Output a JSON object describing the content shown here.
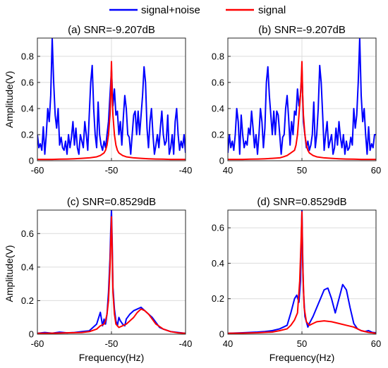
{
  "legend": {
    "entries": [
      {
        "label": "signal+noise",
        "color": "#0000ff"
      },
      {
        "label": "signal",
        "color": "#ff0000"
      }
    ],
    "placement": "top"
  },
  "chart_data": [
    {
      "type": "line",
      "title": "(a) SNR=-9.207dB",
      "xlabel": "",
      "ylabel": "Amplitude(V)",
      "xlim": [
        -60,
        -40
      ],
      "ylim": [
        0,
        0.94
      ],
      "xticks": [
        -60,
        -50,
        -40
      ],
      "xtick_labels": [
        "-60",
        "-50",
        "-40"
      ],
      "yticks": [
        0,
        0.2,
        0.4,
        0.6,
        0.8
      ],
      "ytick_labels": [
        "0",
        "0.2",
        "0.4",
        "0.6",
        "0.8"
      ],
      "grid": true,
      "series": [
        {
          "name": "signal+noise",
          "color": "#0000ff",
          "x": [
            -60,
            -59.8,
            -59.6,
            -59.4,
            -59.2,
            -59,
            -58.8,
            -58.6,
            -58.4,
            -58.2,
            -58,
            -57.8,
            -57.6,
            -57.4,
            -57.2,
            -57,
            -56.8,
            -56.6,
            -56.4,
            -56.2,
            -56,
            -55.8,
            -55.6,
            -55.4,
            -55.2,
            -55,
            -54.8,
            -54.6,
            -54.4,
            -54.2,
            -54,
            -53.8,
            -53.6,
            -53.4,
            -53.2,
            -53,
            -52.8,
            -52.6,
            -52.4,
            -52.2,
            -52,
            -51.8,
            -51.6,
            -51.4,
            -51.2,
            -51,
            -50.8,
            -50.6,
            -50.4,
            -50.2,
            -50,
            -49.8,
            -49.6,
            -49.4,
            -49.2,
            -49,
            -48.8,
            -48.6,
            -48.4,
            -48.2,
            -48,
            -47.8,
            -47.6,
            -47.4,
            -47.2,
            -47,
            -46.8,
            -46.6,
            -46.4,
            -46.2,
            -46,
            -45.8,
            -45.6,
            -45.4,
            -45.2,
            -45,
            -44.8,
            -44.6,
            -44.4,
            -44.2,
            -44,
            -43.8,
            -43.6,
            -43.4,
            -43.2,
            -43,
            -42.8,
            -42.6,
            -42.4,
            -42.2,
            -42,
            -41.8,
            -41.6,
            -41.4,
            -41.2,
            -41,
            -40.8,
            -40.6,
            -40.4,
            -40.2,
            -40
          ],
          "y": [
            0.2,
            0.1,
            0.13,
            0.08,
            0.26,
            0.05,
            0.2,
            0.4,
            0.3,
            0.5,
            0.94,
            0.6,
            0.35,
            0.25,
            0.4,
            0.12,
            0.18,
            0.1,
            0.08,
            0.15,
            0.05,
            0.2,
            0.1,
            0.18,
            0.3,
            0.12,
            0.25,
            0.1,
            0.05,
            0.2,
            0.15,
            0.1,
            0.3,
            0.2,
            0.08,
            0.35,
            0.6,
            0.73,
            0.4,
            0.2,
            0.1,
            0.45,
            0.2,
            0.12,
            0.08,
            0.15,
            0.1,
            0.2,
            0.3,
            0.5,
            0.7,
            0.42,
            0.55,
            0.35,
            0.38,
            0.2,
            0.3,
            0.12,
            0.33,
            0.5,
            0.4,
            0.2,
            0.18,
            0.05,
            0.2,
            0.35,
            0.38,
            0.2,
            0.38,
            0.2,
            0.35,
            0.5,
            0.72,
            0.6,
            0.25,
            0.1,
            0.3,
            0.4,
            0.2,
            0.05,
            0.12,
            0.2,
            0.1,
            0.25,
            0.38,
            0.2,
            0.12,
            0.15,
            0.35,
            0.05,
            0.1,
            0.2,
            0.05,
            0.3,
            0.4,
            0.2,
            0.08,
            0.15,
            0.1,
            0.2,
            0.06
          ]
        },
        {
          "name": "signal",
          "color": "#ff0000",
          "x": [
            -60,
            -59,
            -58,
            -57,
            -56,
            -55,
            -54,
            -53,
            -52,
            -51.5,
            -51,
            -50.8,
            -50.6,
            -50.4,
            -50.2,
            -50.1,
            -50,
            -49.9,
            -49.8,
            -49.6,
            -49.4,
            -49.2,
            -49,
            -48.5,
            -48,
            -47,
            -46,
            -45,
            -44,
            -43,
            -42,
            -41,
            -40
          ],
          "y": [
            0.01,
            0.01,
            0.01,
            0.012,
            0.013,
            0.015,
            0.018,
            0.022,
            0.03,
            0.04,
            0.06,
            0.08,
            0.12,
            0.2,
            0.35,
            0.5,
            0.76,
            0.5,
            0.35,
            0.2,
            0.12,
            0.08,
            0.06,
            0.04,
            0.03,
            0.022,
            0.018,
            0.015,
            0.013,
            0.012,
            0.01,
            0.01,
            0.01
          ]
        }
      ]
    },
    {
      "type": "line",
      "title": "(b) SNR=-9.207dB",
      "xlabel": "",
      "ylabel": "",
      "xlim": [
        40,
        60
      ],
      "ylim": [
        0,
        0.94
      ],
      "xticks": [
        40,
        50,
        60
      ],
      "xtick_labels": [
        "40",
        "50",
        "60"
      ],
      "yticks": [
        0,
        0.2,
        0.4,
        0.6,
        0.8
      ],
      "ytick_labels": [
        "0",
        "0.2",
        "0.4",
        "0.6",
        "0.8"
      ],
      "grid": true,
      "series": [
        {
          "name": "signal+noise",
          "color": "#0000ff",
          "x": [
            40,
            40.2,
            40.4,
            40.6,
            40.8,
            41,
            41.2,
            41.4,
            41.6,
            41.8,
            42,
            42.2,
            42.4,
            42.6,
            42.8,
            43,
            43.2,
            43.4,
            43.6,
            43.8,
            44,
            44.2,
            44.4,
            44.6,
            44.8,
            45,
            45.2,
            45.4,
            45.6,
            45.8,
            46,
            46.2,
            46.4,
            46.6,
            46.8,
            47,
            47.2,
            47.4,
            47.6,
            47.8,
            48,
            48.2,
            48.4,
            48.6,
            48.8,
            49,
            49.2,
            49.4,
            49.6,
            49.8,
            50,
            50.2,
            50.4,
            50.6,
            50.8,
            51,
            51.2,
            51.4,
            51.6,
            51.8,
            52,
            52.2,
            52.4,
            52.6,
            52.8,
            53,
            53.2,
            53.4,
            53.6,
            53.8,
            54,
            54.2,
            54.4,
            54.6,
            54.8,
            55,
            55.2,
            55.4,
            55.6,
            55.8,
            56,
            56.2,
            56.4,
            56.6,
            56.8,
            57,
            57.2,
            57.4,
            57.6,
            57.8,
            58,
            58.2,
            58.4,
            58.6,
            58.8,
            59,
            59.2,
            59.4,
            59.6,
            59.8,
            60
          ],
          "y": [
            0.06,
            0.2,
            0.1,
            0.15,
            0.08,
            0.2,
            0.4,
            0.3,
            0.05,
            0.35,
            0.2,
            0.1,
            0.15,
            0.12,
            0.25,
            0.2,
            0.38,
            0.25,
            0.1,
            0.2,
            0.05,
            0.2,
            0.4,
            0.3,
            0.1,
            0.25,
            0.6,
            0.72,
            0.5,
            0.35,
            0.2,
            0.38,
            0.2,
            0.38,
            0.35,
            0.2,
            0.05,
            0.18,
            0.2,
            0.4,
            0.5,
            0.33,
            0.12,
            0.3,
            0.2,
            0.38,
            0.35,
            0.55,
            0.42,
            0.5,
            0.7,
            0.3,
            0.2,
            0.1,
            0.15,
            0.08,
            0.12,
            0.2,
            0.45,
            0.1,
            0.2,
            0.4,
            0.73,
            0.6,
            0.35,
            0.08,
            0.2,
            0.3,
            0.1,
            0.15,
            0.2,
            0.05,
            0.1,
            0.25,
            0.12,
            0.3,
            0.18,
            0.1,
            0.2,
            0.05,
            0.15,
            0.08,
            0.1,
            0.18,
            0.12,
            0.4,
            0.25,
            0.35,
            0.6,
            0.94,
            0.5,
            0.3,
            0.4,
            0.2,
            0.05,
            0.26,
            0.08,
            0.13,
            0.1,
            0.2,
            0.2
          ]
        },
        {
          "name": "signal",
          "color": "#ff0000",
          "x": [
            40,
            41,
            42,
            43,
            44,
            45,
            46,
            47,
            47.5,
            48,
            48.5,
            49,
            49.2,
            49.4,
            49.6,
            49.8,
            49.9,
            50,
            50.1,
            50.2,
            50.4,
            50.6,
            50.8,
            51,
            51.5,
            52,
            53,
            54,
            55,
            56,
            57,
            58,
            60
          ],
          "y": [
            0.01,
            0.01,
            0.01,
            0.012,
            0.013,
            0.015,
            0.018,
            0.022,
            0.03,
            0.04,
            0.06,
            0.08,
            0.12,
            0.2,
            0.35,
            0.5,
            0.6,
            0.76,
            0.5,
            0.35,
            0.2,
            0.12,
            0.08,
            0.06,
            0.04,
            0.03,
            0.022,
            0.018,
            0.015,
            0.013,
            0.012,
            0.01,
            0.01
          ]
        }
      ]
    },
    {
      "type": "line",
      "title": "(c) SNR=0.8529dB",
      "xlabel": "Frequency(Hz)",
      "ylabel": "Amplitude(V)",
      "xlim": [
        -60,
        -40
      ],
      "ylim": [
        0,
        0.74
      ],
      "xticks": [
        -60,
        -50,
        -40
      ],
      "xtick_labels": [
        "-60",
        "-50",
        "-40"
      ],
      "yticks": [
        0,
        0.2,
        0.4,
        0.6
      ],
      "ytick_labels": [
        "0",
        "0.2",
        "0.4",
        "0.6"
      ],
      "grid": true,
      "series": [
        {
          "name": "signal+noise",
          "color": "#0000ff",
          "x": [
            -60,
            -59,
            -58,
            -57,
            -56,
            -55,
            -54,
            -53,
            -52.5,
            -52,
            -51.5,
            -51.2,
            -51,
            -50.8,
            -50.6,
            -50.4,
            -50.2,
            -50.1,
            -50,
            -49.9,
            -49.8,
            -49.6,
            -49.4,
            -49.2,
            -49,
            -48.8,
            -48.5,
            -48.2,
            -48,
            -47.5,
            -47,
            -46.5,
            -46,
            -45.5,
            -45,
            -44.5,
            -44,
            -43.5,
            -43,
            -42,
            -41,
            -40
          ],
          "y": [
            0.005,
            0.01,
            0.006,
            0.012,
            0.008,
            0.01,
            0.015,
            0.02,
            0.04,
            0.06,
            0.13,
            0.05,
            0.09,
            0.06,
            0.12,
            0.25,
            0.45,
            0.62,
            0.74,
            0.55,
            0.28,
            0.15,
            0.08,
            0.05,
            0.1,
            0.08,
            0.06,
            0.05,
            0.09,
            0.12,
            0.14,
            0.15,
            0.16,
            0.14,
            0.12,
            0.1,
            0.07,
            0.04,
            0.03,
            0.015,
            0.01,
            0.005
          ]
        },
        {
          "name": "signal",
          "color": "#ff0000",
          "x": [
            -60,
            -58,
            -56,
            -54,
            -53,
            -52,
            -51.5,
            -51,
            -50.8,
            -50.6,
            -50.4,
            -50.2,
            -50.1,
            -50,
            -49.9,
            -49.8,
            -49.6,
            -49.4,
            -49.2,
            -49,
            -48.5,
            -48,
            -47.5,
            -47,
            -46.5,
            -46,
            -45.5,
            -45,
            -44.5,
            -44,
            -43,
            -42,
            -41,
            -40
          ],
          "y": [
            0.005,
            0.006,
            0.008,
            0.01,
            0.015,
            0.03,
            0.05,
            0.06,
            0.08,
            0.12,
            0.2,
            0.4,
            0.55,
            0.7,
            0.5,
            0.25,
            0.12,
            0.06,
            0.05,
            0.04,
            0.05,
            0.06,
            0.08,
            0.1,
            0.13,
            0.15,
            0.14,
            0.12,
            0.09,
            0.06,
            0.03,
            0.015,
            0.008,
            0.005
          ]
        }
      ]
    },
    {
      "type": "line",
      "title": "(d) SNR=0.8529dB",
      "xlabel": "Frequency(Hz)",
      "ylabel": "",
      "xlim": [
        40,
        60
      ],
      "ylim": [
        0,
        0.7
      ],
      "xticks": [
        40,
        50,
        60
      ],
      "xtick_labels": [
        "40",
        "50",
        "60"
      ],
      "yticks": [
        0,
        0.2,
        0.4,
        0.6
      ],
      "ytick_labels": [
        "0",
        "0.2",
        "0.4",
        "0.6"
      ],
      "grid": true,
      "series": [
        {
          "name": "signal+noise",
          "color": "#0000ff",
          "x": [
            40,
            42,
            44,
            45,
            46,
            47,
            48,
            48.5,
            49,
            49.3,
            49.6,
            49.8,
            49.9,
            50,
            50.1,
            50.2,
            50.4,
            50.6,
            50.8,
            51,
            51.5,
            52,
            52.5,
            53,
            53.5,
            54,
            54.5,
            55,
            55.5,
            56,
            56.5,
            57,
            57.5,
            58,
            58.5,
            59,
            59.5,
            60
          ],
          "y": [
            0.005,
            0.008,
            0.012,
            0.015,
            0.02,
            0.03,
            0.05,
            0.12,
            0.2,
            0.22,
            0.18,
            0.3,
            0.5,
            0.7,
            0.45,
            0.25,
            0.1,
            0.07,
            0.04,
            0.06,
            0.1,
            0.15,
            0.2,
            0.25,
            0.26,
            0.2,
            0.12,
            0.2,
            0.28,
            0.25,
            0.15,
            0.06,
            0.03,
            0.02,
            0.015,
            0.02,
            0.01,
            0.008
          ]
        },
        {
          "name": "signal",
          "color": "#ff0000",
          "x": [
            40,
            42,
            44,
            46,
            47,
            48,
            48.5,
            49,
            49.4,
            49.7,
            49.9,
            50,
            50.1,
            50.3,
            50.6,
            51,
            51.5,
            52,
            53,
            54,
            55,
            56,
            57,
            58,
            59,
            60
          ],
          "y": [
            0.005,
            0.006,
            0.008,
            0.012,
            0.02,
            0.03,
            0.05,
            0.08,
            0.12,
            0.3,
            0.55,
            0.69,
            0.4,
            0.15,
            0.07,
            0.05,
            0.06,
            0.07,
            0.075,
            0.07,
            0.06,
            0.05,
            0.04,
            0.02,
            0.01,
            0.005
          ]
        }
      ]
    }
  ]
}
